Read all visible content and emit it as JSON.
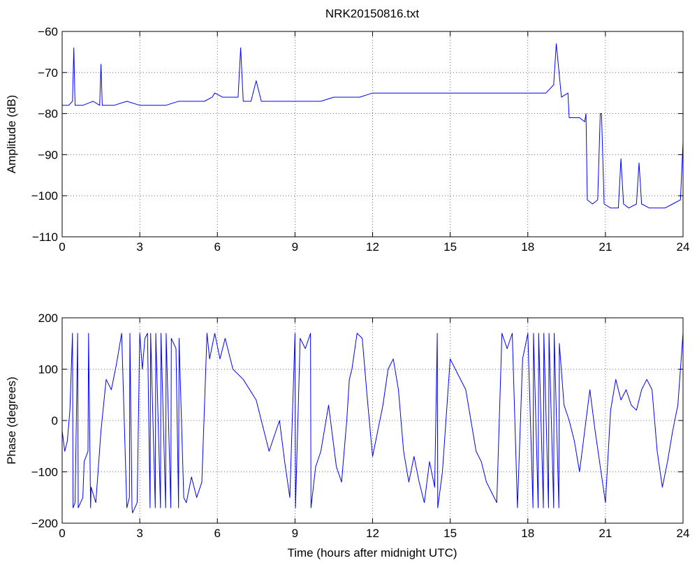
{
  "chart_data": [
    {
      "type": "line",
      "title": "NRK20150816.txt",
      "xlabel": "",
      "ylabel": "Amplitude (dB)",
      "xlim": [
        0,
        24
      ],
      "ylim": [
        -110,
        -60
      ],
      "xticks": [
        "0",
        "3",
        "6",
        "9",
        "12",
        "15",
        "18",
        "21",
        "24"
      ],
      "yticks": [
        "−60",
        "−70",
        "−80",
        "−90",
        "−100",
        "−110"
      ],
      "grid": true,
      "color": "#0000ff",
      "series": [
        {
          "x": [
            0,
            0.25,
            0.4,
            0.45,
            0.5,
            0.8,
            1.2,
            1.45,
            1.5,
            1.55,
            2.0,
            2.5,
            3.0,
            3.5,
            4.0,
            4.5,
            5.0,
            5.5,
            5.8,
            5.9,
            6.2,
            6.5,
            6.8,
            6.9,
            7.0,
            7.3,
            7.5,
            7.7,
            8.0,
            8.5,
            9.0,
            9.5,
            10.0,
            10.5,
            11.0,
            11.5,
            12.0,
            13.0,
            14.0,
            15.0,
            16.0,
            17.0,
            18.0,
            18.7,
            19.0,
            19.1,
            19.3,
            19.55,
            19.6,
            19.8,
            20.0,
            20.2,
            20.25,
            20.3,
            20.5,
            20.7,
            20.8,
            20.85,
            20.95,
            21.2,
            21.5,
            21.6,
            21.7,
            21.9,
            22.2,
            22.3,
            22.4,
            22.7,
            23.0,
            23.3,
            23.6,
            23.9,
            24.0
          ],
          "y": [
            -78,
            -78,
            -77,
            -64,
            -78,
            -78,
            -77,
            -78,
            -68,
            -78,
            -78,
            -77,
            -78,
            -78,
            -78,
            -77,
            -77,
            -77,
            -76,
            -75,
            -76,
            -76,
            -76,
            -64,
            -77,
            -77,
            -72,
            -77,
            -77,
            -77,
            -77,
            -77,
            -77,
            -76,
            -76,
            -76,
            -75,
            -75,
            -75,
            -75,
            -75,
            -75,
            -75,
            -75,
            -73,
            -63,
            -76,
            -75,
            -81,
            -81,
            -81,
            -82,
            -80,
            -101,
            -102,
            -101,
            -80,
            -80,
            -102,
            -103,
            -103,
            -91,
            -102,
            -103,
            -102,
            -92,
            -102,
            -103,
            -103,
            -103,
            -102,
            -101,
            -87
          ]
        }
      ]
    },
    {
      "type": "line",
      "title": "",
      "xlabel": "Time (hours after midnight UTC)",
      "ylabel": "Phase (degrees)",
      "xlim": [
        0,
        24
      ],
      "ylim": [
        -200,
        200
      ],
      "xticks": [
        "0",
        "3",
        "6",
        "9",
        "12",
        "15",
        "18",
        "21",
        "24"
      ],
      "yticks": [
        "200",
        "100",
        "0",
        "−100",
        "−200"
      ],
      "grid": true,
      "color": "#0000ff",
      "series": [
        {
          "x": [
            0,
            0.1,
            0.2,
            0.3,
            0.4,
            0.42,
            0.5,
            0.6,
            0.62,
            0.8,
            0.85,
            1.0,
            1.02,
            1.1,
            1.12,
            1.3,
            1.5,
            1.7,
            1.9,
            2.1,
            2.3,
            2.5,
            2.6,
            2.62,
            2.7,
            2.72,
            2.9,
            3.0,
            3.1,
            3.2,
            3.3,
            3.4,
            3.42,
            3.6,
            3.62,
            3.8,
            3.82,
            4.0,
            4.02,
            4.2,
            4.22,
            4.4,
            4.5,
            4.52,
            4.7,
            4.8,
            5.0,
            5.2,
            5.4,
            5.6,
            5.7,
            5.9,
            6.1,
            6.3,
            6.6,
            7.0,
            7.5,
            7.8,
            8.0,
            8.2,
            8.4,
            8.6,
            8.8,
            9.0,
            9.02,
            9.2,
            9.4,
            9.6,
            9.62,
            9.8,
            10.0,
            10.3,
            10.6,
            10.8,
            10.9,
            11.0,
            11.1,
            11.2,
            11.4,
            11.6,
            11.8,
            12.0,
            12.2,
            12.4,
            12.6,
            12.8,
            13.0,
            13.2,
            13.4,
            13.6,
            13.8,
            14.0,
            14.2,
            14.4,
            14.5,
            14.52,
            14.7,
            15.0,
            15.3,
            15.6,
            15.9,
            16.0,
            16.2,
            16.4,
            16.6,
            16.8,
            17.0,
            17.2,
            17.4,
            17.6,
            17.8,
            18.0,
            18.2,
            18.22,
            18.4,
            18.42,
            18.6,
            18.62,
            18.8,
            18.82,
            19.0,
            19.02,
            19.2,
            19.22,
            19.4,
            19.6,
            19.8,
            20.0,
            20.2,
            20.4,
            20.6,
            20.8,
            21.0,
            21.2,
            21.4,
            21.6,
            21.8,
            22.0,
            22.2,
            22.4,
            22.6,
            22.8,
            23.0,
            23.2,
            23.4,
            23.6,
            23.8,
            24.0
          ],
          "y": [
            -20,
            -60,
            -40,
            20,
            170,
            -170,
            -160,
            170,
            -170,
            -150,
            -80,
            -60,
            170,
            -170,
            -130,
            -160,
            -20,
            80,
            60,
            110,
            170,
            -170,
            -150,
            170,
            -170,
            -180,
            -160,
            170,
            100,
            160,
            170,
            -170,
            170,
            -170,
            170,
            -170,
            170,
            -170,
            170,
            -170,
            160,
            140,
            -170,
            160,
            -150,
            -160,
            -110,
            -150,
            -120,
            170,
            120,
            170,
            120,
            160,
            100,
            80,
            40,
            -20,
            -60,
            -30,
            0,
            -80,
            -150,
            170,
            -170,
            160,
            140,
            170,
            -170,
            -90,
            -60,
            30,
            -90,
            -120,
            -60,
            0,
            80,
            100,
            170,
            160,
            40,
            -70,
            -20,
            30,
            100,
            120,
            60,
            -60,
            -120,
            -70,
            -120,
            -160,
            -80,
            -130,
            170,
            -170,
            -100,
            120,
            90,
            60,
            -30,
            -60,
            -80,
            -120,
            -140,
            -160,
            170,
            140,
            170,
            -170,
            120,
            170,
            -170,
            170,
            -170,
            170,
            -170,
            170,
            -170,
            170,
            -170,
            170,
            -170,
            150,
            30,
            0,
            -40,
            -100,
            -20,
            60,
            -20,
            -90,
            -160,
            20,
            80,
            40,
            60,
            30,
            20,
            60,
            80,
            60,
            -60,
            -130,
            -80,
            -20,
            30,
            170
          ]
        }
      ]
    }
  ]
}
